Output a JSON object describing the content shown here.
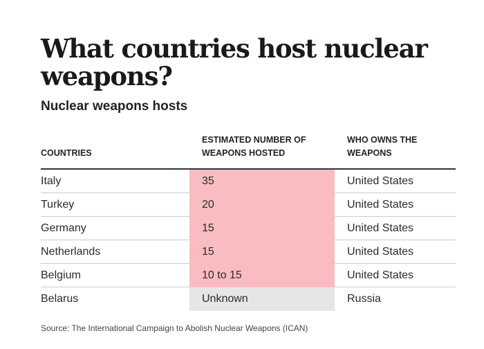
{
  "title": "What countries host nuclear weapons?",
  "subtitle": "Nuclear weapons hosts",
  "table": {
    "headers": [
      "COUNTRIES",
      "ESTIMATED NUMBER OF WEAPONS HOSTED",
      "WHO OWNS THE WEAPONS"
    ],
    "rows": [
      {
        "country": "Italy",
        "weapons": "35",
        "owner": "United States",
        "highlight": "#f9bcc0"
      },
      {
        "country": "Turkey",
        "weapons": "20",
        "owner": "United States",
        "highlight": "#f9bcc0"
      },
      {
        "country": "Germany",
        "weapons": "15",
        "owner": "United States",
        "highlight": "#f9bcc0"
      },
      {
        "country": "Netherlands",
        "weapons": "15",
        "owner": "United States",
        "highlight": "#f9bcc0"
      },
      {
        "country": "Belgium",
        "weapons": "10 to 15",
        "owner": "United States",
        "highlight": "#f9bcc0"
      },
      {
        "country": "Belarus",
        "weapons": "Unknown",
        "owner": "Russia",
        "highlight": "#e6e6e6"
      }
    ]
  },
  "source": "Source: The International Campaign to Abolish Nuclear Weapons (ICAN)"
}
